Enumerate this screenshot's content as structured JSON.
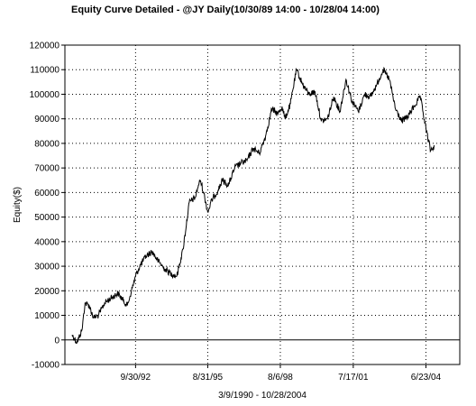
{
  "chart_data": {
    "type": "line",
    "title": "Equity Curve Detailed - @JY Daily(10/30/89 14:00 - 10/28/04 14:00)",
    "xlabel": "3/9/1990 - 10/28/2004",
    "ylabel": "Equity($)",
    "ylim": [
      -10000,
      120000
    ],
    "xlim": [
      "1990-03-09",
      "2004-10-28"
    ],
    "y_ticks": [
      "120000",
      "110000",
      "100000",
      "90000",
      "80000",
      "70000",
      "60000",
      "50000",
      "40000",
      "30000",
      "20000",
      "10000",
      "0",
      "-10000"
    ],
    "x_ticks": [
      "9/30/92",
      "8/31/95",
      "8/6/98",
      "7/17/01",
      "6/23/04"
    ],
    "grid": true,
    "grid_style": "dotted",
    "zero_line": true,
    "line_color": "#000000",
    "series": [
      {
        "x": [
          "1990-03-09",
          "1990-05-20",
          "1990-08-01",
          "1990-09-15",
          "1990-11-15",
          "1991-01-20",
          "1991-04-01",
          "1991-07-01",
          "1991-10-01",
          "1992-01-15",
          "1992-04-01",
          "1992-06-01",
          "1992-08-01",
          "1992-10-01",
          "1992-12-01",
          "1993-03-01",
          "1993-06-01",
          "1993-09-01",
          "1993-12-01",
          "1994-03-01",
          "1994-06-01",
          "1994-09-01",
          "1994-12-01",
          "1995-03-01",
          "1995-04-15",
          "1995-05-15",
          "1995-07-01",
          "1995-09-01",
          "1995-11-01",
          "1996-02-01",
          "1996-04-01",
          "1996-07-01",
          "1996-10-01",
          "1997-01-01",
          "1997-04-01",
          "1997-07-01",
          "1997-10-01",
          "1998-01-01",
          "1998-04-01",
          "1998-07-01",
          "1998-09-01",
          "1998-10-15",
          "1999-01-01",
          "1999-04-01",
          "1999-07-01",
          "1999-10-01",
          "2000-01-01",
          "2000-04-01",
          "2000-07-01",
          "2000-10-01",
          "2001-01-01",
          "2001-04-01",
          "2001-07-01",
          "2001-10-01",
          "2002-01-01",
          "2002-04-01",
          "2002-07-01",
          "2002-10-01",
          "2003-01-01",
          "2003-04-01",
          "2003-07-01",
          "2003-10-01",
          "2004-01-01",
          "2004-04-01",
          "2004-06-23",
          "2004-09-01",
          "2004-10-28"
        ],
        "y": [
          2000,
          -1000,
          4000,
          15000,
          14000,
          9000,
          10000,
          15000,
          17000,
          19000,
          16000,
          14000,
          20000,
          26000,
          30000,
          34000,
          36000,
          32000,
          29000,
          27000,
          26000,
          37000,
          56000,
          58000,
          63000,
          65000,
          60000,
          52000,
          57000,
          61000,
          65000,
          63000,
          70000,
          72000,
          73000,
          78000,
          76000,
          83000,
          94000,
          92000,
          95000,
          90000,
          96000,
          110000,
          104000,
          100000,
          101000,
          89000,
          90000,
          99000,
          93000,
          106000,
          97000,
          93000,
          100000,
          99000,
          104000,
          110000,
          106000,
          94000,
          89000,
          91000,
          95000,
          99000,
          86000,
          77000,
          79000
        ]
      }
    ]
  }
}
